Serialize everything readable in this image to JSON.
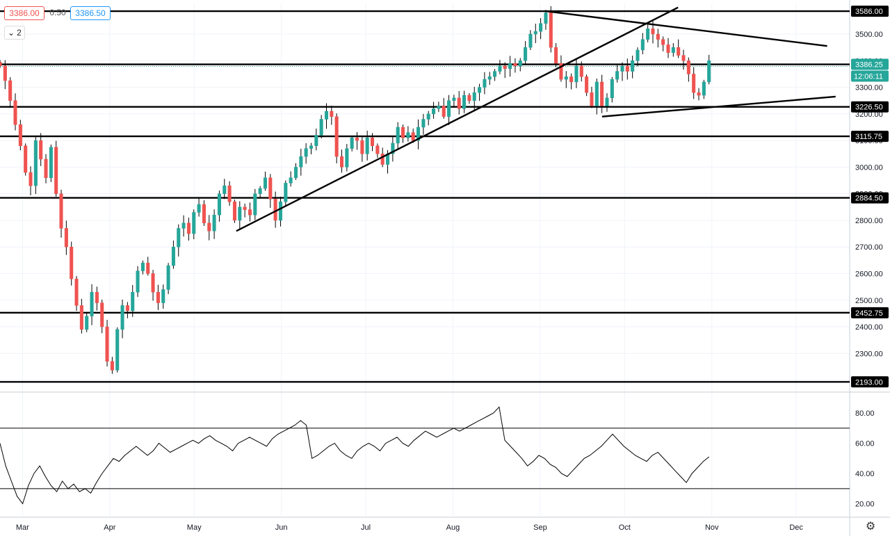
{
  "quote_bar": {
    "bid": "3386.00",
    "spread": "0.50",
    "ask": "3386.50"
  },
  "pane_control": {
    "icon": "chevron-down-icon",
    "count": "2"
  },
  "settings_icon": "gear-icon",
  "colors": {
    "up": "#26a69a",
    "down": "#ef5350",
    "line": "#000000",
    "grid": "#f0f3fa",
    "axis_text": "#131722"
  },
  "chart_data": {
    "type": "candlestick",
    "ylim": [
      2165,
      3615
    ],
    "x_range_days": [
      0,
      302
    ],
    "y_ticks": [
      "2200.00",
      "2300.00",
      "2400.00",
      "2500.00",
      "2600.00",
      "2700.00",
      "2800.00",
      "2900.00",
      "3000.00",
      "3100.00",
      "3200.00",
      "3300.00",
      "3400.00",
      "3500.00"
    ],
    "months": [
      {
        "label": "Mar",
        "day": 8
      },
      {
        "label": "Apr",
        "day": 39
      },
      {
        "label": "May",
        "day": 69
      },
      {
        "label": "Jun",
        "day": 100
      },
      {
        "label": "Jul",
        "day": 130
      },
      {
        "label": "Aug",
        "day": 161
      },
      {
        "label": "Sep",
        "day": 192
      },
      {
        "label": "Oct",
        "day": 222
      },
      {
        "label": "Nov",
        "day": 253
      },
      {
        "label": "Dec",
        "day": 283
      }
    ],
    "levels": [
      {
        "price": 3586.0,
        "label": "3586.00"
      },
      {
        "price": 3386.25,
        "label": "3386.25",
        "current": true,
        "time": "12:06:11"
      },
      {
        "price": 3226.5,
        "label": "3226.50"
      },
      {
        "price": 3115.75,
        "label": "3115.75"
      },
      {
        "price": 2884.5,
        "label": "2884.50"
      },
      {
        "price": 2452.75,
        "label": "2452.75"
      },
      {
        "price": 2193.0,
        "label": "2193.00"
      }
    ],
    "trendlines": [
      {
        "name": "rising-support",
        "start": {
          "day": 84,
          "price": 2760
        },
        "end": {
          "day": 241,
          "price": 3600
        }
      },
      {
        "name": "upper-wedge",
        "start": {
          "day": 194,
          "price": 3586
        },
        "end": {
          "day": 294,
          "price": 3455
        }
      },
      {
        "name": "lower-wedge",
        "start": {
          "day": 214,
          "price": 3190
        },
        "end": {
          "day": 297,
          "price": 3265
        }
      }
    ],
    "series_closes": [
      3380,
      3325,
      3250,
      3160,
      3080,
      2980,
      2930,
      3100,
      3030,
      2960,
      3075,
      2900,
      2770,
      2700,
      2580,
      2480,
      2390,
      2440,
      2530,
      2490,
      2400,
      2270,
      2237,
      2390,
      2480,
      2460,
      2530,
      2610,
      2640,
      2600,
      2530,
      2490,
      2540,
      2630,
      2700,
      2770,
      2790,
      2750,
      2830,
      2860,
      2790,
      2760,
      2820,
      2900,
      2930,
      2870,
      2800,
      2850,
      2840,
      2820,
      2900,
      2920,
      2960,
      2880,
      2800,
      2870,
      2940,
      2960,
      3000,
      3040,
      3070,
      3080,
      3120,
      3180,
      3210,
      3190,
      3040,
      3000,
      3070,
      3110,
      3100,
      3050,
      3110,
      3080,
      3050,
      3010,
      3050,
      3090,
      3150,
      3110,
      3130,
      3100,
      3150,
      3180,
      3200,
      3220,
      3230,
      3190,
      3250,
      3260,
      3220,
      3270,
      3250,
      3280,
      3300,
      3330,
      3340,
      3360,
      3380,
      3370,
      3390,
      3380,
      3400,
      3450,
      3500,
      3510,
      3540,
      3580,
      3450,
      3390,
      3330,
      3340,
      3320,
      3380,
      3340,
      3280,
      3230,
      3320,
      3230,
      3260,
      3330,
      3360,
      3380,
      3360,
      3400,
      3440,
      3480,
      3520,
      3500,
      3480,
      3460,
      3430,
      3450,
      3420,
      3400,
      3350,
      3280,
      3270,
      3320,
      3400
    ],
    "oscillator": {
      "ylim": [
        12,
        92
      ],
      "ticks": [
        "20.00",
        "40.00",
        "60.00",
        "80.00"
      ],
      "bands": [
        30,
        70
      ],
      "values": [
        60,
        45,
        35,
        25,
        20,
        32,
        40,
        45,
        38,
        32,
        28,
        35,
        30,
        33,
        28,
        30,
        27,
        34,
        40,
        45,
        50,
        48,
        52,
        55,
        58,
        55,
        52,
        55,
        60,
        57,
        54,
        56,
        58,
        60,
        62,
        60,
        63,
        65,
        62,
        60,
        58,
        55,
        60,
        62,
        64,
        62,
        60,
        58,
        63,
        66,
        68,
        70,
        72,
        75,
        72,
        50,
        52,
        55,
        58,
        60,
        55,
        52,
        50,
        55,
        58,
        60,
        58,
        55,
        60,
        62,
        64,
        60,
        58,
        62,
        65,
        68,
        66,
        64,
        66,
        68,
        70,
        68,
        70,
        72,
        74,
        76,
        78,
        80,
        84,
        62,
        58,
        54,
        50,
        45,
        48,
        52,
        50,
        46,
        44,
        40,
        38,
        42,
        46,
        50,
        52,
        55,
        58,
        62,
        66,
        62,
        58,
        55,
        52,
        50,
        48,
        52,
        54,
        50,
        46,
        42,
        38,
        34,
        40,
        44,
        48,
        51
      ]
    }
  }
}
